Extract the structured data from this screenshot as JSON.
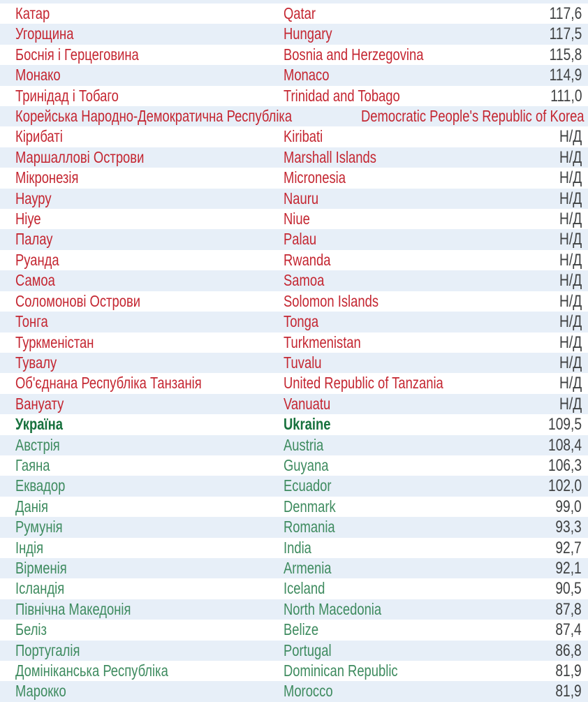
{
  "table": {
    "na_label": "Н/Д",
    "rows": [
      {
        "uk": "Катар",
        "en": "Qatar",
        "value": "117,6",
        "group": "above"
      },
      {
        "uk": "Угорщина",
        "en": "Hungary",
        "value": "117,5",
        "group": "above"
      },
      {
        "uk": "Боснія і Герцеговина",
        "en": "Bosnia and Herzegovina",
        "value": "115,8",
        "group": "above"
      },
      {
        "uk": "Монако",
        "en": "Monaco",
        "value": "114,9",
        "group": "above"
      },
      {
        "uk": "Тринідад і Тобаго",
        "en": "Trinidad and Tobago",
        "value": "111,0",
        "group": "above"
      },
      {
        "uk": "Корейська Народно-Демократична Республіка",
        "en": "Democratic People's Republic of Korea",
        "value": "Н/Д",
        "group": "above"
      },
      {
        "uk": "Кірибаті",
        "en": "Kiribati",
        "value": "Н/Д",
        "group": "above"
      },
      {
        "uk": "Маршаллові Острови",
        "en": "Marshall Islands",
        "value": "Н/Д",
        "group": "above"
      },
      {
        "uk": "Мікронезія",
        "en": "Micronesia",
        "value": "Н/Д",
        "group": "above"
      },
      {
        "uk": "Науру",
        "en": "Nauru",
        "value": "Н/Д",
        "group": "above"
      },
      {
        "uk": "Ніуе",
        "en": "Niue",
        "value": "Н/Д",
        "group": "above"
      },
      {
        "uk": "Палау",
        "en": "Palau",
        "value": "Н/Д",
        "group": "above"
      },
      {
        "uk": "Руанда",
        "en": "Rwanda",
        "value": "Н/Д",
        "group": "above"
      },
      {
        "uk": "Самоа",
        "en": "Samoa",
        "value": "Н/Д",
        "group": "above"
      },
      {
        "uk": "Соломонові Острови",
        "en": "Solomon Islands",
        "value": "Н/Д",
        "group": "above"
      },
      {
        "uk": "Тонга",
        "en": "Tonga",
        "value": "Н/Д",
        "group": "above"
      },
      {
        "uk": "Туркменістан",
        "en": "Turkmenistan",
        "value": "Н/Д",
        "group": "above"
      },
      {
        "uk": "Тувалу",
        "en": "Tuvalu",
        "value": "Н/Д",
        "group": "above"
      },
      {
        "uk": "Об'єднана Республіка Танзанія",
        "en": "United Republic of Tanzania",
        "value": "Н/Д",
        "group": "above"
      },
      {
        "uk": "Вануату",
        "en": "Vanuatu",
        "value": "Н/Д",
        "group": "above"
      },
      {
        "uk": "Україна",
        "en": "Ukraine",
        "value": "109,5",
        "group": "ukraine"
      },
      {
        "uk": "Австрія",
        "en": "Austria",
        "value": "108,4",
        "group": "below"
      },
      {
        "uk": "Гаяна",
        "en": "Guyana",
        "value": "106,3",
        "group": "below"
      },
      {
        "uk": "Еквадор",
        "en": "Ecuador",
        "value": "102,0",
        "group": "below"
      },
      {
        "uk": "Данія",
        "en": "Denmark",
        "value": "99,0",
        "group": "below"
      },
      {
        "uk": "Румунія",
        "en": "Romania",
        "value": "93,3",
        "group": "below"
      },
      {
        "uk": "Індія",
        "en": "India",
        "value": "92,7",
        "group": "below"
      },
      {
        "uk": "Вірменія",
        "en": "Armenia",
        "value": "92,1",
        "group": "below"
      },
      {
        "uk": "Ісландія",
        "en": "Iceland",
        "value": "90,5",
        "group": "below"
      },
      {
        "uk": "Північна Македонія",
        "en": "North Macedonia",
        "value": "87,8",
        "group": "below"
      },
      {
        "uk": "Беліз",
        "en": "Belize",
        "value": "87,4",
        "group": "below"
      },
      {
        "uk": "Португалія",
        "en": "Portugal",
        "value": "86,8",
        "group": "below"
      },
      {
        "uk": "Домініканська Республіка",
        "en": "Dominican Republic",
        "value": "81,9",
        "group": "below"
      },
      {
        "uk": "Марокко",
        "en": "Morocco",
        "value": "81,9",
        "group": "below"
      }
    ]
  },
  "colors": {
    "above_text": "#c42631",
    "below_text": "#3e8b5f",
    "ukraine_text": "#17713d",
    "value_text": "#3f4142",
    "row_bg": "#ffffff",
    "row_alt_bg": "#e7eff8"
  }
}
